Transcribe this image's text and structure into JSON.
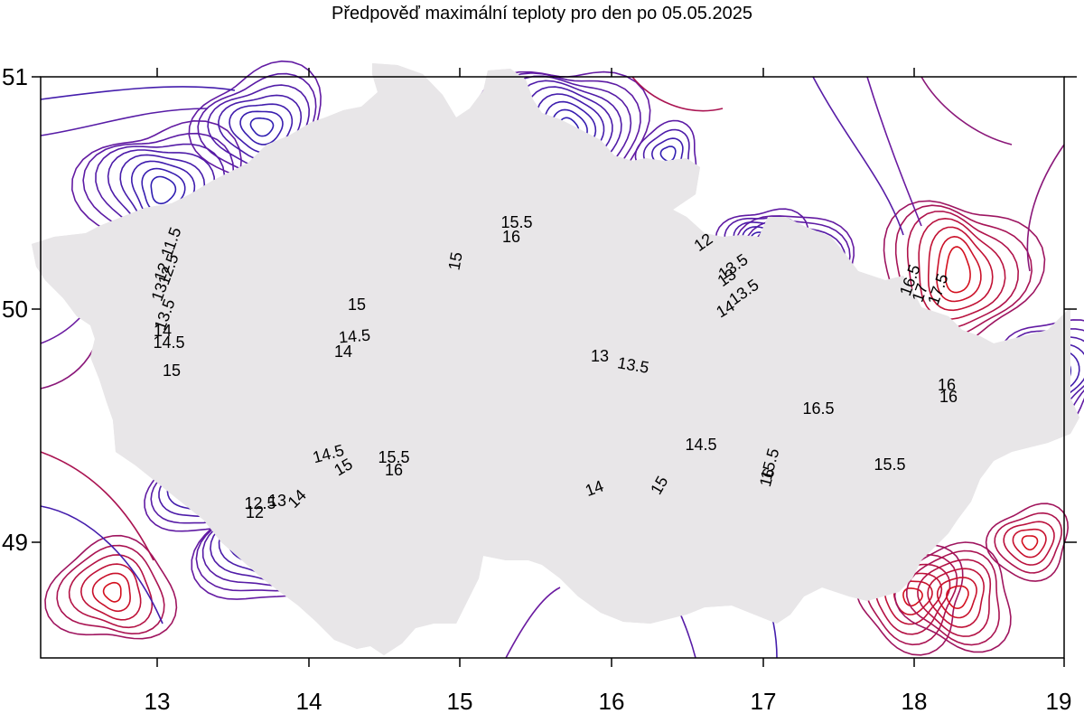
{
  "title": "Předpověď maximální teploty pro den po 05.05.2025",
  "axes": {
    "x_ticks": [
      "13",
      "14",
      "15",
      "16",
      "17",
      "18",
      "19"
    ],
    "y_ticks": [
      "51",
      "50",
      "49"
    ]
  },
  "colors": {
    "country_fill": "#e8e6e8",
    "border": "#ee1111",
    "district_lines": "#8a8a8a",
    "contour_cold": "#2a1fb4",
    "contour_mid": "#6a1aa0",
    "contour_warm": "#d4101e",
    "frame": "#000000"
  },
  "contour_labels": [
    {
      "text": "15.5",
      "key": "a"
    },
    {
      "text": "16",
      "key": "b"
    },
    {
      "text": "15",
      "key": "c"
    },
    {
      "text": "15",
      "key": "d"
    },
    {
      "text": "14.5",
      "key": "e"
    },
    {
      "text": "14",
      "key": "f"
    },
    {
      "text": "13",
      "key": "g"
    },
    {
      "text": "13.5",
      "key": "h"
    },
    {
      "text": "12",
      "key": "i"
    },
    {
      "text": "13.5",
      "key": "j"
    },
    {
      "text": "13",
      "key": "k"
    },
    {
      "text": "13.5",
      "key": "l"
    },
    {
      "text": "14",
      "key": "m"
    },
    {
      "text": "16.5",
      "key": "n"
    },
    {
      "text": "17",
      "key": "o"
    },
    {
      "text": "17.5",
      "key": "p"
    },
    {
      "text": "16",
      "key": "q"
    },
    {
      "text": "16",
      "key": "r"
    },
    {
      "text": "16.5",
      "key": "s"
    },
    {
      "text": "15.5",
      "key": "t"
    },
    {
      "text": "16",
      "key": "u"
    },
    {
      "text": "15.5",
      "key": "v"
    },
    {
      "text": "14.5",
      "key": "w"
    },
    {
      "text": "15",
      "key": "x"
    },
    {
      "text": "14",
      "key": "y"
    },
    {
      "text": "14.5",
      "key": "z"
    },
    {
      "text": "15",
      "key": "aa"
    },
    {
      "text": "15.5",
      "key": "ab"
    },
    {
      "text": "16",
      "key": "ac"
    },
    {
      "text": "14",
      "key": "ad"
    },
    {
      "text": "12.5",
      "key": "ae"
    },
    {
      "text": "13",
      "key": "af"
    },
    {
      "text": "12",
      "key": "ag"
    },
    {
      "text": "14.5",
      "key": "ah"
    },
    {
      "text": "15",
      "key": "ai"
    },
    {
      "text": "11.5",
      "key": "aj"
    },
    {
      "text": "12",
      "key": "ak"
    },
    {
      "text": "12.5",
      "key": "al"
    },
    {
      "text": "13",
      "key": "am"
    },
    {
      "text": "13.5",
      "key": "an"
    },
    {
      "text": "14",
      "key": "ao"
    }
  ]
}
